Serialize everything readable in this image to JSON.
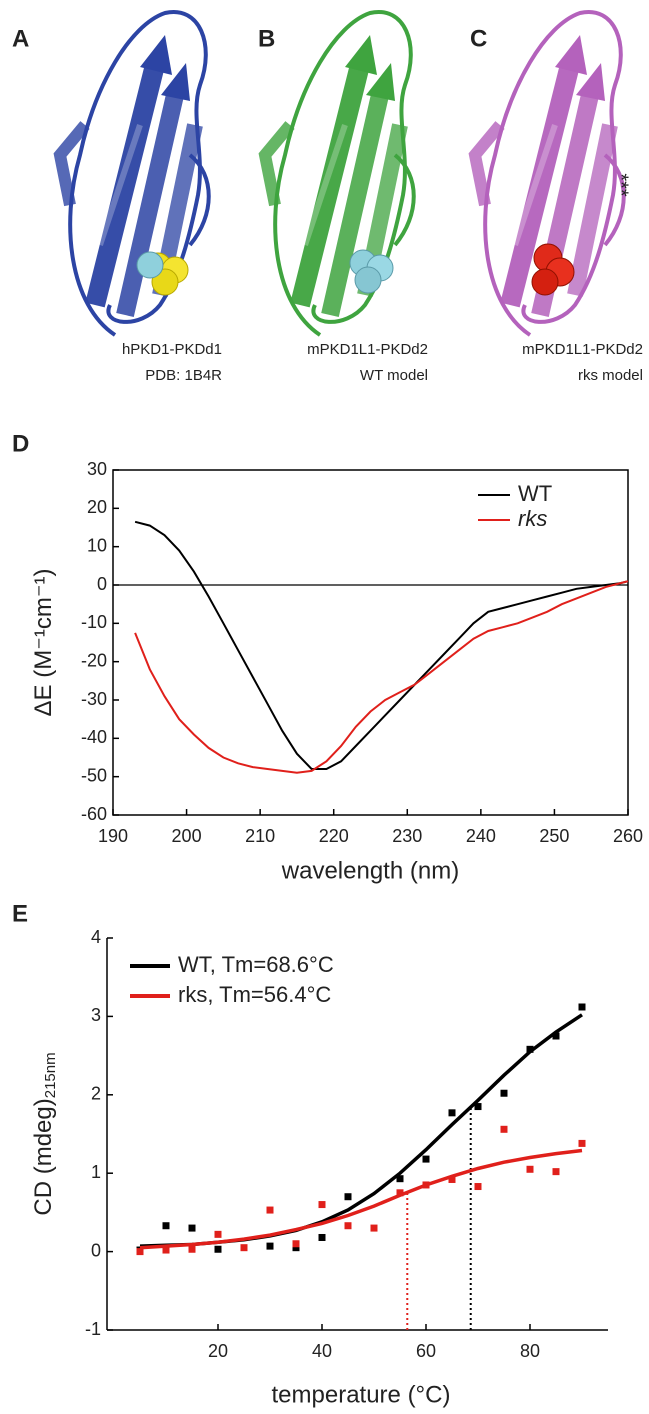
{
  "panels": [
    {
      "label": "A",
      "caption": [
        "hPKD1-PKDd1",
        "PDB: 1B4R"
      ]
    },
    {
      "label": "B",
      "caption": [
        "mPKD1L1-PKDd2",
        "WT model"
      ]
    },
    {
      "label": "C",
      "caption": [
        "mPKD1L1-PKDd2",
        "rks model"
      ],
      "annotation": "***"
    }
  ],
  "chart_data": [
    {
      "type": "line",
      "panel_label": "D",
      "xlabel": "wavelength (nm)",
      "ylabel": "ΔE (M⁻¹cm⁻¹)",
      "xlim": [
        190,
        260
      ],
      "xticks": [
        190,
        200,
        210,
        220,
        230,
        240,
        250,
        260
      ],
      "ylim": [
        -60,
        30
      ],
      "yticks": [
        -60,
        -50,
        -40,
        -30,
        -20,
        -10,
        0,
        10,
        20,
        30
      ],
      "reference_line": 0,
      "x": [
        193,
        195,
        197,
        199,
        201,
        203,
        205,
        207,
        209,
        211,
        213,
        215,
        217,
        219,
        221,
        223,
        225,
        227,
        229,
        231,
        233,
        235,
        237,
        239,
        241,
        243,
        245,
        247,
        249,
        251,
        253,
        255,
        257,
        259,
        260
      ],
      "series": [
        {
          "name": "WT",
          "color": "#000000",
          "values": [
            16.5,
            15.5,
            13,
            9,
            3.5,
            -3,
            -10,
            -17,
            -24,
            -31,
            -38,
            -44,
            -48,
            -48,
            -46,
            -42,
            -38,
            -34,
            -30,
            -26,
            -22,
            -18,
            -14,
            -10,
            -7,
            -6,
            -5,
            -4,
            -3,
            -2,
            -1,
            -0.5,
            0,
            0.5,
            1
          ]
        },
        {
          "name": "rks",
          "color": "#e0201b",
          "values": [
            -12.5,
            -22,
            -29,
            -35,
            -39,
            -42.5,
            -45,
            -46.5,
            -47.5,
            -48,
            -48.5,
            -49,
            -48.5,
            -46,
            -42,
            -37,
            -33,
            -30,
            -28,
            -26,
            -23,
            -20,
            -17,
            -14,
            -12,
            -11,
            -10,
            -8.5,
            -7,
            -5,
            -3.5,
            -2,
            -0.5,
            0.5,
            1
          ]
        }
      ]
    },
    {
      "type": "scatter",
      "panel_label": "E",
      "xlabel": "temperature (°C)",
      "ylabel": "CD (mdeg)",
      "ylabel_sub": "215nm",
      "xlim": [
        0,
        95
      ],
      "xticks": [
        20,
        40,
        60,
        80
      ],
      "ylim": [
        -1,
        4
      ],
      "yticks": [
        -1,
        0,
        1,
        2,
        3,
        4
      ],
      "series": [
        {
          "name": "WT, Tm=68.6°C",
          "color": "#000000",
          "tm": 68.6,
          "x": [
            5,
            10,
            15,
            20,
            30,
            35,
            40,
            45,
            55,
            60,
            65,
            70,
            75,
            80,
            85,
            90
          ],
          "values": [
            0.02,
            0.33,
            0.3,
            0.03,
            0.07,
            0.05,
            0.18,
            0.7,
            0.93,
            1.18,
            1.77,
            1.85,
            2.02,
            2.58,
            2.75,
            3.12
          ],
          "fit_x": [
            5,
            10,
            15,
            20,
            25,
            30,
            35,
            40,
            45,
            50,
            55,
            60,
            65,
            70,
            75,
            80,
            85,
            90
          ],
          "fit_values": [
            0.07,
            0.08,
            0.09,
            0.12,
            0.15,
            0.2,
            0.27,
            0.38,
            0.53,
            0.74,
            1.0,
            1.3,
            1.62,
            1.93,
            2.25,
            2.55,
            2.8,
            3.02
          ]
        },
        {
          "name": "rks, Tm=56.4°C",
          "color": "#e0201b",
          "tm": 56.4,
          "x": [
            5,
            10,
            15,
            20,
            25,
            30,
            35,
            40,
            45,
            50,
            55,
            60,
            65,
            70,
            75,
            80,
            85,
            90
          ],
          "values": [
            0.0,
            0.02,
            0.03,
            0.22,
            0.05,
            0.53,
            0.1,
            0.6,
            0.33,
            0.3,
            0.75,
            0.85,
            0.92,
            0.83,
            1.56,
            1.05,
            1.02,
            1.38
          ],
          "fit_x": [
            5,
            10,
            15,
            20,
            25,
            30,
            35,
            40,
            45,
            50,
            55,
            60,
            65,
            70,
            75,
            80,
            85,
            90
          ],
          "fit_values": [
            0.05,
            0.07,
            0.09,
            0.12,
            0.16,
            0.21,
            0.28,
            0.36,
            0.46,
            0.58,
            0.72,
            0.85,
            0.96,
            1.06,
            1.14,
            1.2,
            1.25,
            1.29
          ]
        }
      ]
    }
  ]
}
